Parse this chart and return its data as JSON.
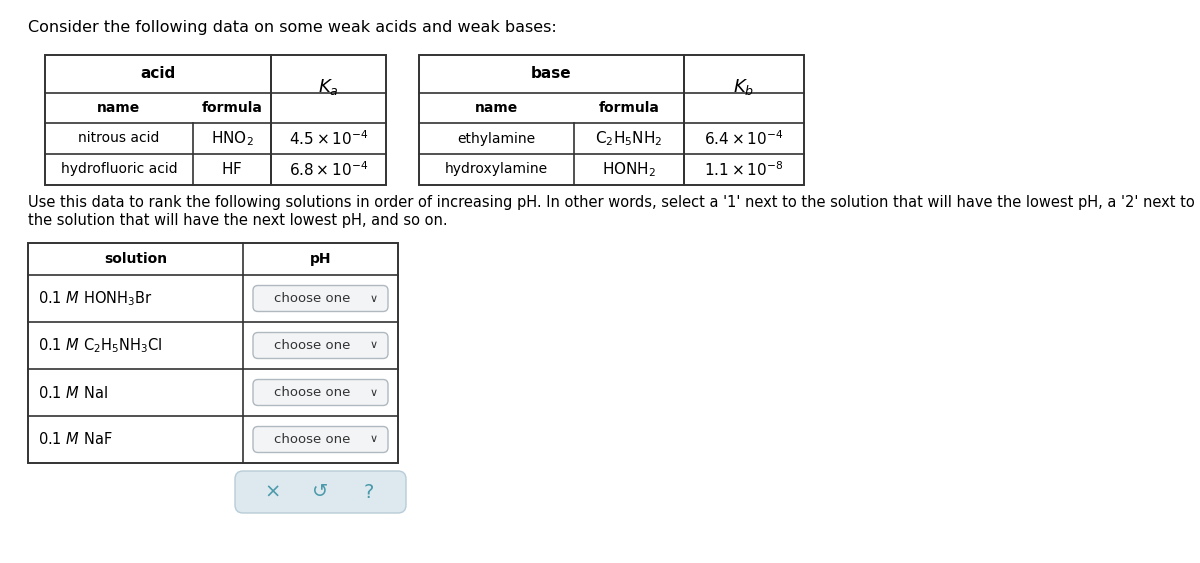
{
  "title_text": "Consider the following data on some weak acids and weak bases:",
  "bg_color": "#ffffff",
  "text_color": "#1a1a1a",
  "instruction_text": "Use this data to rank the following solutions in order of increasing pH. In other words, select a '1' next to the solution that will have the lowest pH, a '2' next to\nthe solution that will have the next lowest pH, and so on.",
  "acid_table": {
    "rows": [
      {
        "name": "nitrous acid",
        "formula": "HNO_2",
        "Ka": "4.5e-4"
      },
      {
        "name": "hydrofluoric acid",
        "formula": "HF",
        "Ka": "6.8e-4"
      }
    ]
  },
  "base_table": {
    "rows": [
      {
        "name": "ethylamine",
        "formula": "C_2H_5NH_2",
        "Kb": "6.4e-4"
      },
      {
        "name": "hydroxylamine",
        "formula": "HONH_2",
        "Kb": "1.1e-8"
      }
    ]
  },
  "solution_table": {
    "rows": [
      "0.1 M HONH3Br",
      "0.1 M C2H5NH3Cl",
      "0.1 M NaI",
      "0.1 M NaF"
    ]
  },
  "dropdown_text": "choose one  ∨",
  "footer_buttons": [
    "×",
    "↺",
    "?"
  ],
  "teal_color": "#4a9aaa",
  "dropdown_border": "#b0b8c0",
  "dropdown_bg": "#f2f4f6",
  "footer_bg": "#dde8ef",
  "footer_border": "#b8ccd8"
}
